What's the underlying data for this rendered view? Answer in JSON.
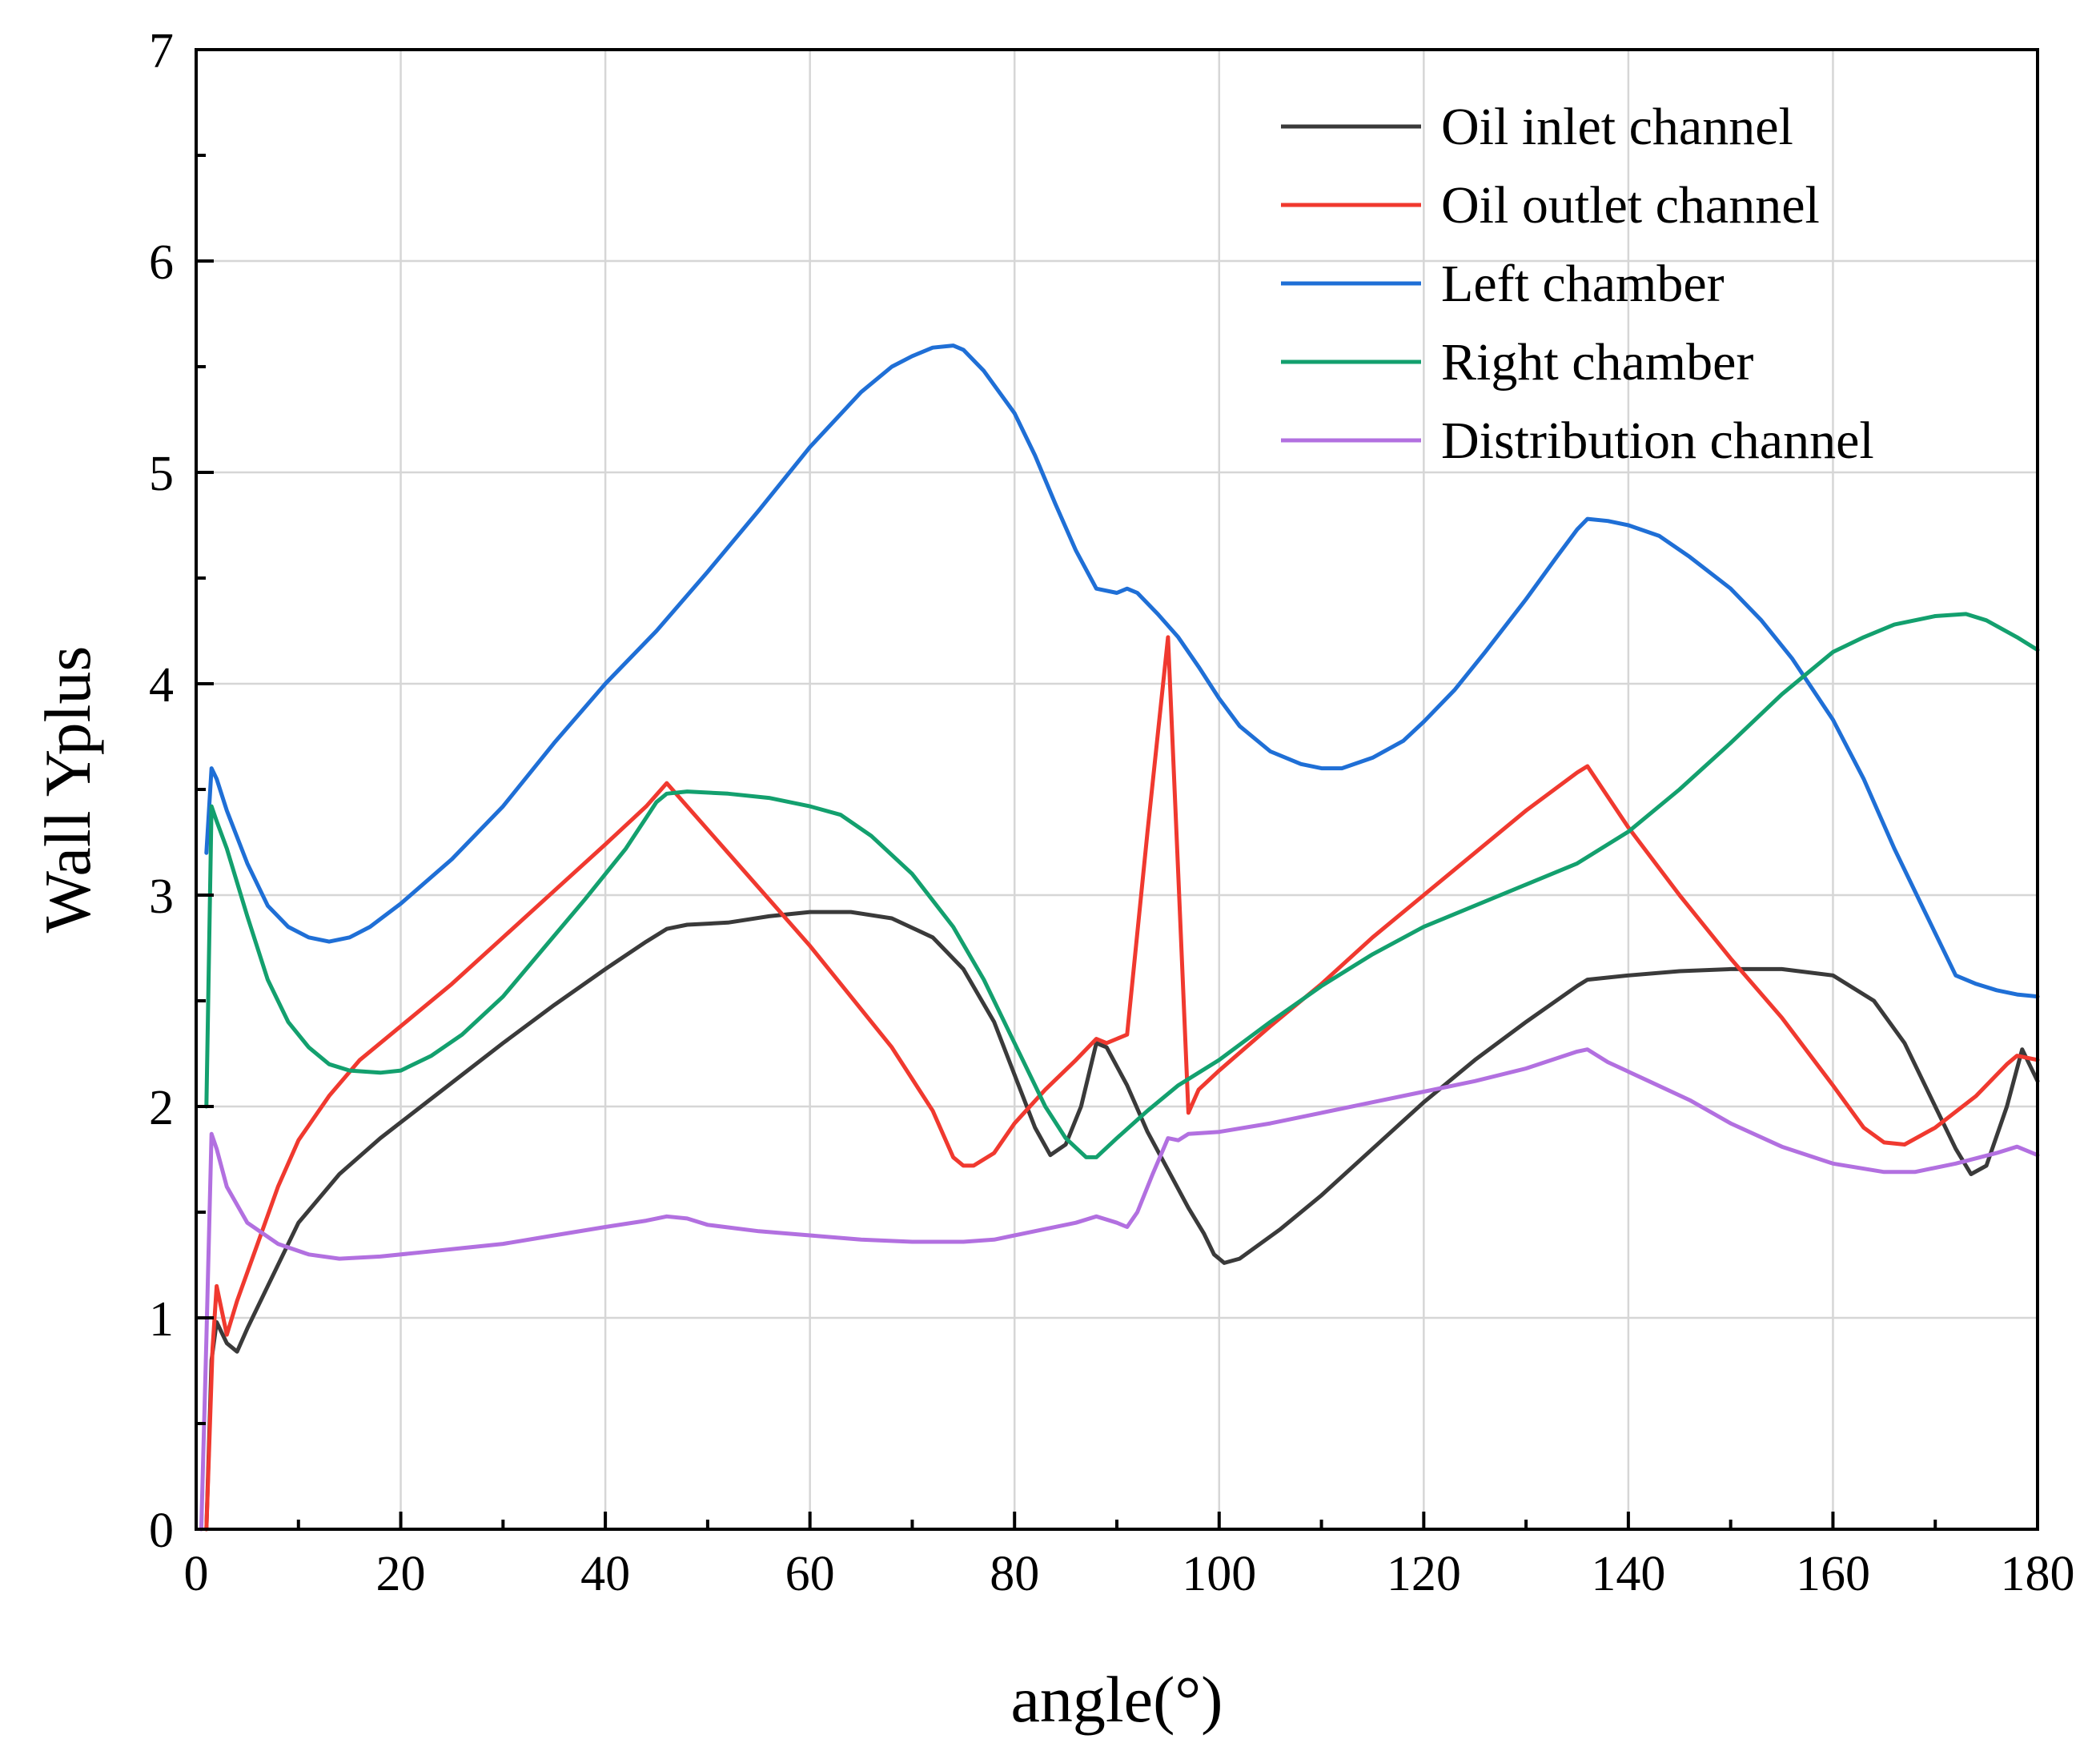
{
  "chart_data": {
    "type": "line",
    "title": "",
    "xlabel": "angle(°)",
    "ylabel": "Wall Yplus",
    "xlim": [
      0,
      180
    ],
    "ylim": [
      0,
      7
    ],
    "x_ticks": [
      0,
      20,
      40,
      60,
      80,
      100,
      120,
      140,
      160,
      180
    ],
    "y_ticks": [
      0,
      1,
      2,
      3,
      4,
      5,
      6,
      7
    ],
    "x_minor_step": 10,
    "y_minor_step": 0.5,
    "grid": true,
    "legend_position": "top-right",
    "series": [
      {
        "name": "Oil inlet channel",
        "color": "#3a3a3a",
        "points": [
          [
            1,
            0
          ],
          [
            1.5,
            0.8
          ],
          [
            2,
            0.98
          ],
          [
            3,
            0.88
          ],
          [
            4,
            0.84
          ],
          [
            5,
            0.95
          ],
          [
            7,
            1.15
          ],
          [
            10,
            1.45
          ],
          [
            14,
            1.68
          ],
          [
            18,
            1.85
          ],
          [
            22,
            2.0
          ],
          [
            26,
            2.15
          ],
          [
            30,
            2.3
          ],
          [
            35,
            2.48
          ],
          [
            40,
            2.65
          ],
          [
            44,
            2.78
          ],
          [
            46,
            2.84
          ],
          [
            48,
            2.86
          ],
          [
            52,
            2.87
          ],
          [
            56,
            2.9
          ],
          [
            60,
            2.92
          ],
          [
            64,
            2.92
          ],
          [
            68,
            2.89
          ],
          [
            72,
            2.8
          ],
          [
            75,
            2.65
          ],
          [
            78,
            2.4
          ],
          [
            80,
            2.15
          ],
          [
            82,
            1.9
          ],
          [
            83.5,
            1.77
          ],
          [
            85,
            1.82
          ],
          [
            86.5,
            2.0
          ],
          [
            88,
            2.3
          ],
          [
            89,
            2.28
          ],
          [
            91,
            2.1
          ],
          [
            93,
            1.88
          ],
          [
            95,
            1.7
          ],
          [
            97,
            1.52
          ],
          [
            98.5,
            1.4
          ],
          [
            99.5,
            1.3
          ],
          [
            100.5,
            1.26
          ],
          [
            102,
            1.28
          ],
          [
            106,
            1.42
          ],
          [
            110,
            1.58
          ],
          [
            115,
            1.8
          ],
          [
            120,
            2.02
          ],
          [
            125,
            2.22
          ],
          [
            130,
            2.4
          ],
          [
            135,
            2.57
          ],
          [
            136,
            2.6
          ],
          [
            140,
            2.62
          ],
          [
            145,
            2.64
          ],
          [
            150,
            2.65
          ],
          [
            155,
            2.65
          ],
          [
            160,
            2.62
          ],
          [
            164,
            2.5
          ],
          [
            167,
            2.3
          ],
          [
            170,
            2.0
          ],
          [
            172,
            1.8
          ],
          [
            173.5,
            1.68
          ],
          [
            175,
            1.72
          ],
          [
            177,
            2.0
          ],
          [
            178.5,
            2.27
          ],
          [
            180,
            2.12
          ]
        ]
      },
      {
        "name": "Oil outlet channel",
        "color": "#f0392f",
        "points": [
          [
            1,
            0
          ],
          [
            1.6,
            0.85
          ],
          [
            2,
            1.15
          ],
          [
            3,
            0.92
          ],
          [
            4,
            1.08
          ],
          [
            6,
            1.35
          ],
          [
            8,
            1.62
          ],
          [
            10,
            1.84
          ],
          [
            13,
            2.05
          ],
          [
            16,
            2.22
          ],
          [
            20,
            2.38
          ],
          [
            25,
            2.58
          ],
          [
            30,
            2.8
          ],
          [
            35,
            3.02
          ],
          [
            40,
            3.24
          ],
          [
            44,
            3.42
          ],
          [
            46,
            3.53
          ],
          [
            48,
            3.42
          ],
          [
            52,
            3.2
          ],
          [
            56,
            2.98
          ],
          [
            60,
            2.76
          ],
          [
            64,
            2.52
          ],
          [
            68,
            2.28
          ],
          [
            72,
            1.98
          ],
          [
            74,
            1.76
          ],
          [
            75,
            1.72
          ],
          [
            76,
            1.72
          ],
          [
            78,
            1.78
          ],
          [
            80,
            1.92
          ],
          [
            83,
            2.08
          ],
          [
            86,
            2.22
          ],
          [
            88,
            2.32
          ],
          [
            89,
            2.3
          ],
          [
            90,
            2.32
          ],
          [
            91,
            2.34
          ],
          [
            93,
            3.3
          ],
          [
            95,
            4.22
          ],
          [
            96,
            3.1
          ],
          [
            97,
            1.97
          ],
          [
            98,
            2.08
          ],
          [
            100,
            2.17
          ],
          [
            105,
            2.38
          ],
          [
            110,
            2.58
          ],
          [
            115,
            2.8
          ],
          [
            120,
            3.0
          ],
          [
            125,
            3.2
          ],
          [
            130,
            3.4
          ],
          [
            135,
            3.58
          ],
          [
            136,
            3.61
          ],
          [
            140,
            3.32
          ],
          [
            145,
            3.0
          ],
          [
            150,
            2.7
          ],
          [
            155,
            2.42
          ],
          [
            160,
            2.1
          ],
          [
            163,
            1.9
          ],
          [
            165,
            1.83
          ],
          [
            167,
            1.82
          ],
          [
            170,
            1.9
          ],
          [
            174,
            2.05
          ],
          [
            177,
            2.2
          ],
          [
            178,
            2.24
          ],
          [
            180,
            2.22
          ]
        ]
      },
      {
        "name": "Left chamber",
        "color": "#1f6fd6",
        "points": [
          [
            1,
            3.2
          ],
          [
            1.5,
            3.6
          ],
          [
            2,
            3.55
          ],
          [
            3,
            3.4
          ],
          [
            5,
            3.15
          ],
          [
            7,
            2.95
          ],
          [
            9,
            2.85
          ],
          [
            11,
            2.8
          ],
          [
            13,
            2.78
          ],
          [
            15,
            2.8
          ],
          [
            17,
            2.85
          ],
          [
            20,
            2.96
          ],
          [
            25,
            3.17
          ],
          [
            30,
            3.42
          ],
          [
            35,
            3.72
          ],
          [
            40,
            4.0
          ],
          [
            45,
            4.25
          ],
          [
            50,
            4.53
          ],
          [
            55,
            4.82
          ],
          [
            60,
            5.12
          ],
          [
            65,
            5.38
          ],
          [
            68,
            5.5
          ],
          [
            70,
            5.55
          ],
          [
            72,
            5.59
          ],
          [
            74,
            5.6
          ],
          [
            75,
            5.58
          ],
          [
            77,
            5.48
          ],
          [
            80,
            5.28
          ],
          [
            82,
            5.08
          ],
          [
            84,
            4.85
          ],
          [
            86,
            4.63
          ],
          [
            88,
            4.45
          ],
          [
            90,
            4.43
          ],
          [
            91,
            4.45
          ],
          [
            92,
            4.43
          ],
          [
            94,
            4.33
          ],
          [
            96,
            4.22
          ],
          [
            98,
            4.08
          ],
          [
            100,
            3.93
          ],
          [
            102,
            3.8
          ],
          [
            105,
            3.68
          ],
          [
            108,
            3.62
          ],
          [
            110,
            3.6
          ],
          [
            112,
            3.6
          ],
          [
            115,
            3.65
          ],
          [
            118,
            3.73
          ],
          [
            120,
            3.82
          ],
          [
            123,
            3.97
          ],
          [
            126,
            4.15
          ],
          [
            130,
            4.4
          ],
          [
            133,
            4.6
          ],
          [
            135,
            4.73
          ],
          [
            136,
            4.78
          ],
          [
            138,
            4.77
          ],
          [
            140,
            4.75
          ],
          [
            143,
            4.7
          ],
          [
            146,
            4.6
          ],
          [
            150,
            4.45
          ],
          [
            153,
            4.3
          ],
          [
            156,
            4.12
          ],
          [
            160,
            3.83
          ],
          [
            163,
            3.55
          ],
          [
            166,
            3.22
          ],
          [
            169,
            2.92
          ],
          [
            172,
            2.62
          ],
          [
            174,
            2.58
          ],
          [
            176,
            2.55
          ],
          [
            178,
            2.53
          ],
          [
            180,
            2.52
          ]
        ]
      },
      {
        "name": "Right chamber",
        "color": "#13a06e",
        "points": [
          [
            1,
            2.0
          ],
          [
            1.5,
            3.42
          ],
          [
            2,
            3.35
          ],
          [
            3,
            3.22
          ],
          [
            5,
            2.9
          ],
          [
            7,
            2.6
          ],
          [
            9,
            2.4
          ],
          [
            11,
            2.28
          ],
          [
            13,
            2.2
          ],
          [
            15,
            2.17
          ],
          [
            18,
            2.16
          ],
          [
            20,
            2.17
          ],
          [
            23,
            2.24
          ],
          [
            26,
            2.34
          ],
          [
            30,
            2.52
          ],
          [
            34,
            2.75
          ],
          [
            38,
            2.98
          ],
          [
            42,
            3.22
          ],
          [
            45,
            3.44
          ],
          [
            46,
            3.48
          ],
          [
            48,
            3.49
          ],
          [
            52,
            3.48
          ],
          [
            56,
            3.46
          ],
          [
            60,
            3.42
          ],
          [
            63,
            3.38
          ],
          [
            66,
            3.28
          ],
          [
            70,
            3.1
          ],
          [
            74,
            2.85
          ],
          [
            77,
            2.6
          ],
          [
            80,
            2.3
          ],
          [
            83,
            2.0
          ],
          [
            85,
            1.85
          ],
          [
            87,
            1.76
          ],
          [
            88,
            1.76
          ],
          [
            90,
            1.85
          ],
          [
            93,
            1.98
          ],
          [
            96,
            2.1
          ],
          [
            100,
            2.22
          ],
          [
            105,
            2.4
          ],
          [
            110,
            2.57
          ],
          [
            115,
            2.72
          ],
          [
            120,
            2.85
          ],
          [
            125,
            2.95
          ],
          [
            130,
            3.05
          ],
          [
            135,
            3.15
          ],
          [
            140,
            3.3
          ],
          [
            145,
            3.5
          ],
          [
            150,
            3.72
          ],
          [
            155,
            3.95
          ],
          [
            160,
            4.15
          ],
          [
            163,
            4.22
          ],
          [
            166,
            4.28
          ],
          [
            170,
            4.32
          ],
          [
            173,
            4.33
          ],
          [
            175,
            4.3
          ],
          [
            178,
            4.22
          ],
          [
            180,
            4.16
          ]
        ]
      },
      {
        "name": "Distribution channel",
        "color": "#b270e0",
        "points": [
          [
            0.5,
            0
          ],
          [
            1,
            0.9
          ],
          [
            1.5,
            1.87
          ],
          [
            2,
            1.8
          ],
          [
            3,
            1.62
          ],
          [
            5,
            1.45
          ],
          [
            8,
            1.35
          ],
          [
            11,
            1.3
          ],
          [
            14,
            1.28
          ],
          [
            18,
            1.29
          ],
          [
            22,
            1.31
          ],
          [
            26,
            1.33
          ],
          [
            30,
            1.35
          ],
          [
            35,
            1.39
          ],
          [
            40,
            1.43
          ],
          [
            44,
            1.46
          ],
          [
            46,
            1.48
          ],
          [
            48,
            1.47
          ],
          [
            50,
            1.44
          ],
          [
            55,
            1.41
          ],
          [
            60,
            1.39
          ],
          [
            65,
            1.37
          ],
          [
            70,
            1.36
          ],
          [
            75,
            1.36
          ],
          [
            78,
            1.37
          ],
          [
            80,
            1.39
          ],
          [
            83,
            1.42
          ],
          [
            86,
            1.45
          ],
          [
            88,
            1.48
          ],
          [
            90,
            1.45
          ],
          [
            91,
            1.43
          ],
          [
            92,
            1.5
          ],
          [
            93.5,
            1.68
          ],
          [
            95,
            1.85
          ],
          [
            96,
            1.84
          ],
          [
            97,
            1.87
          ],
          [
            100,
            1.88
          ],
          [
            105,
            1.92
          ],
          [
            110,
            1.97
          ],
          [
            115,
            2.02
          ],
          [
            120,
            2.07
          ],
          [
            125,
            2.12
          ],
          [
            130,
            2.18
          ],
          [
            135,
            2.26
          ],
          [
            136,
            2.27
          ],
          [
            138,
            2.21
          ],
          [
            142,
            2.12
          ],
          [
            146,
            2.03
          ],
          [
            150,
            1.92
          ],
          [
            155,
            1.81
          ],
          [
            160,
            1.73
          ],
          [
            165,
            1.69
          ],
          [
            168,
            1.69
          ],
          [
            172,
            1.73
          ],
          [
            176,
            1.78
          ],
          [
            178,
            1.81
          ],
          [
            180,
            1.77
          ]
        ]
      }
    ]
  }
}
